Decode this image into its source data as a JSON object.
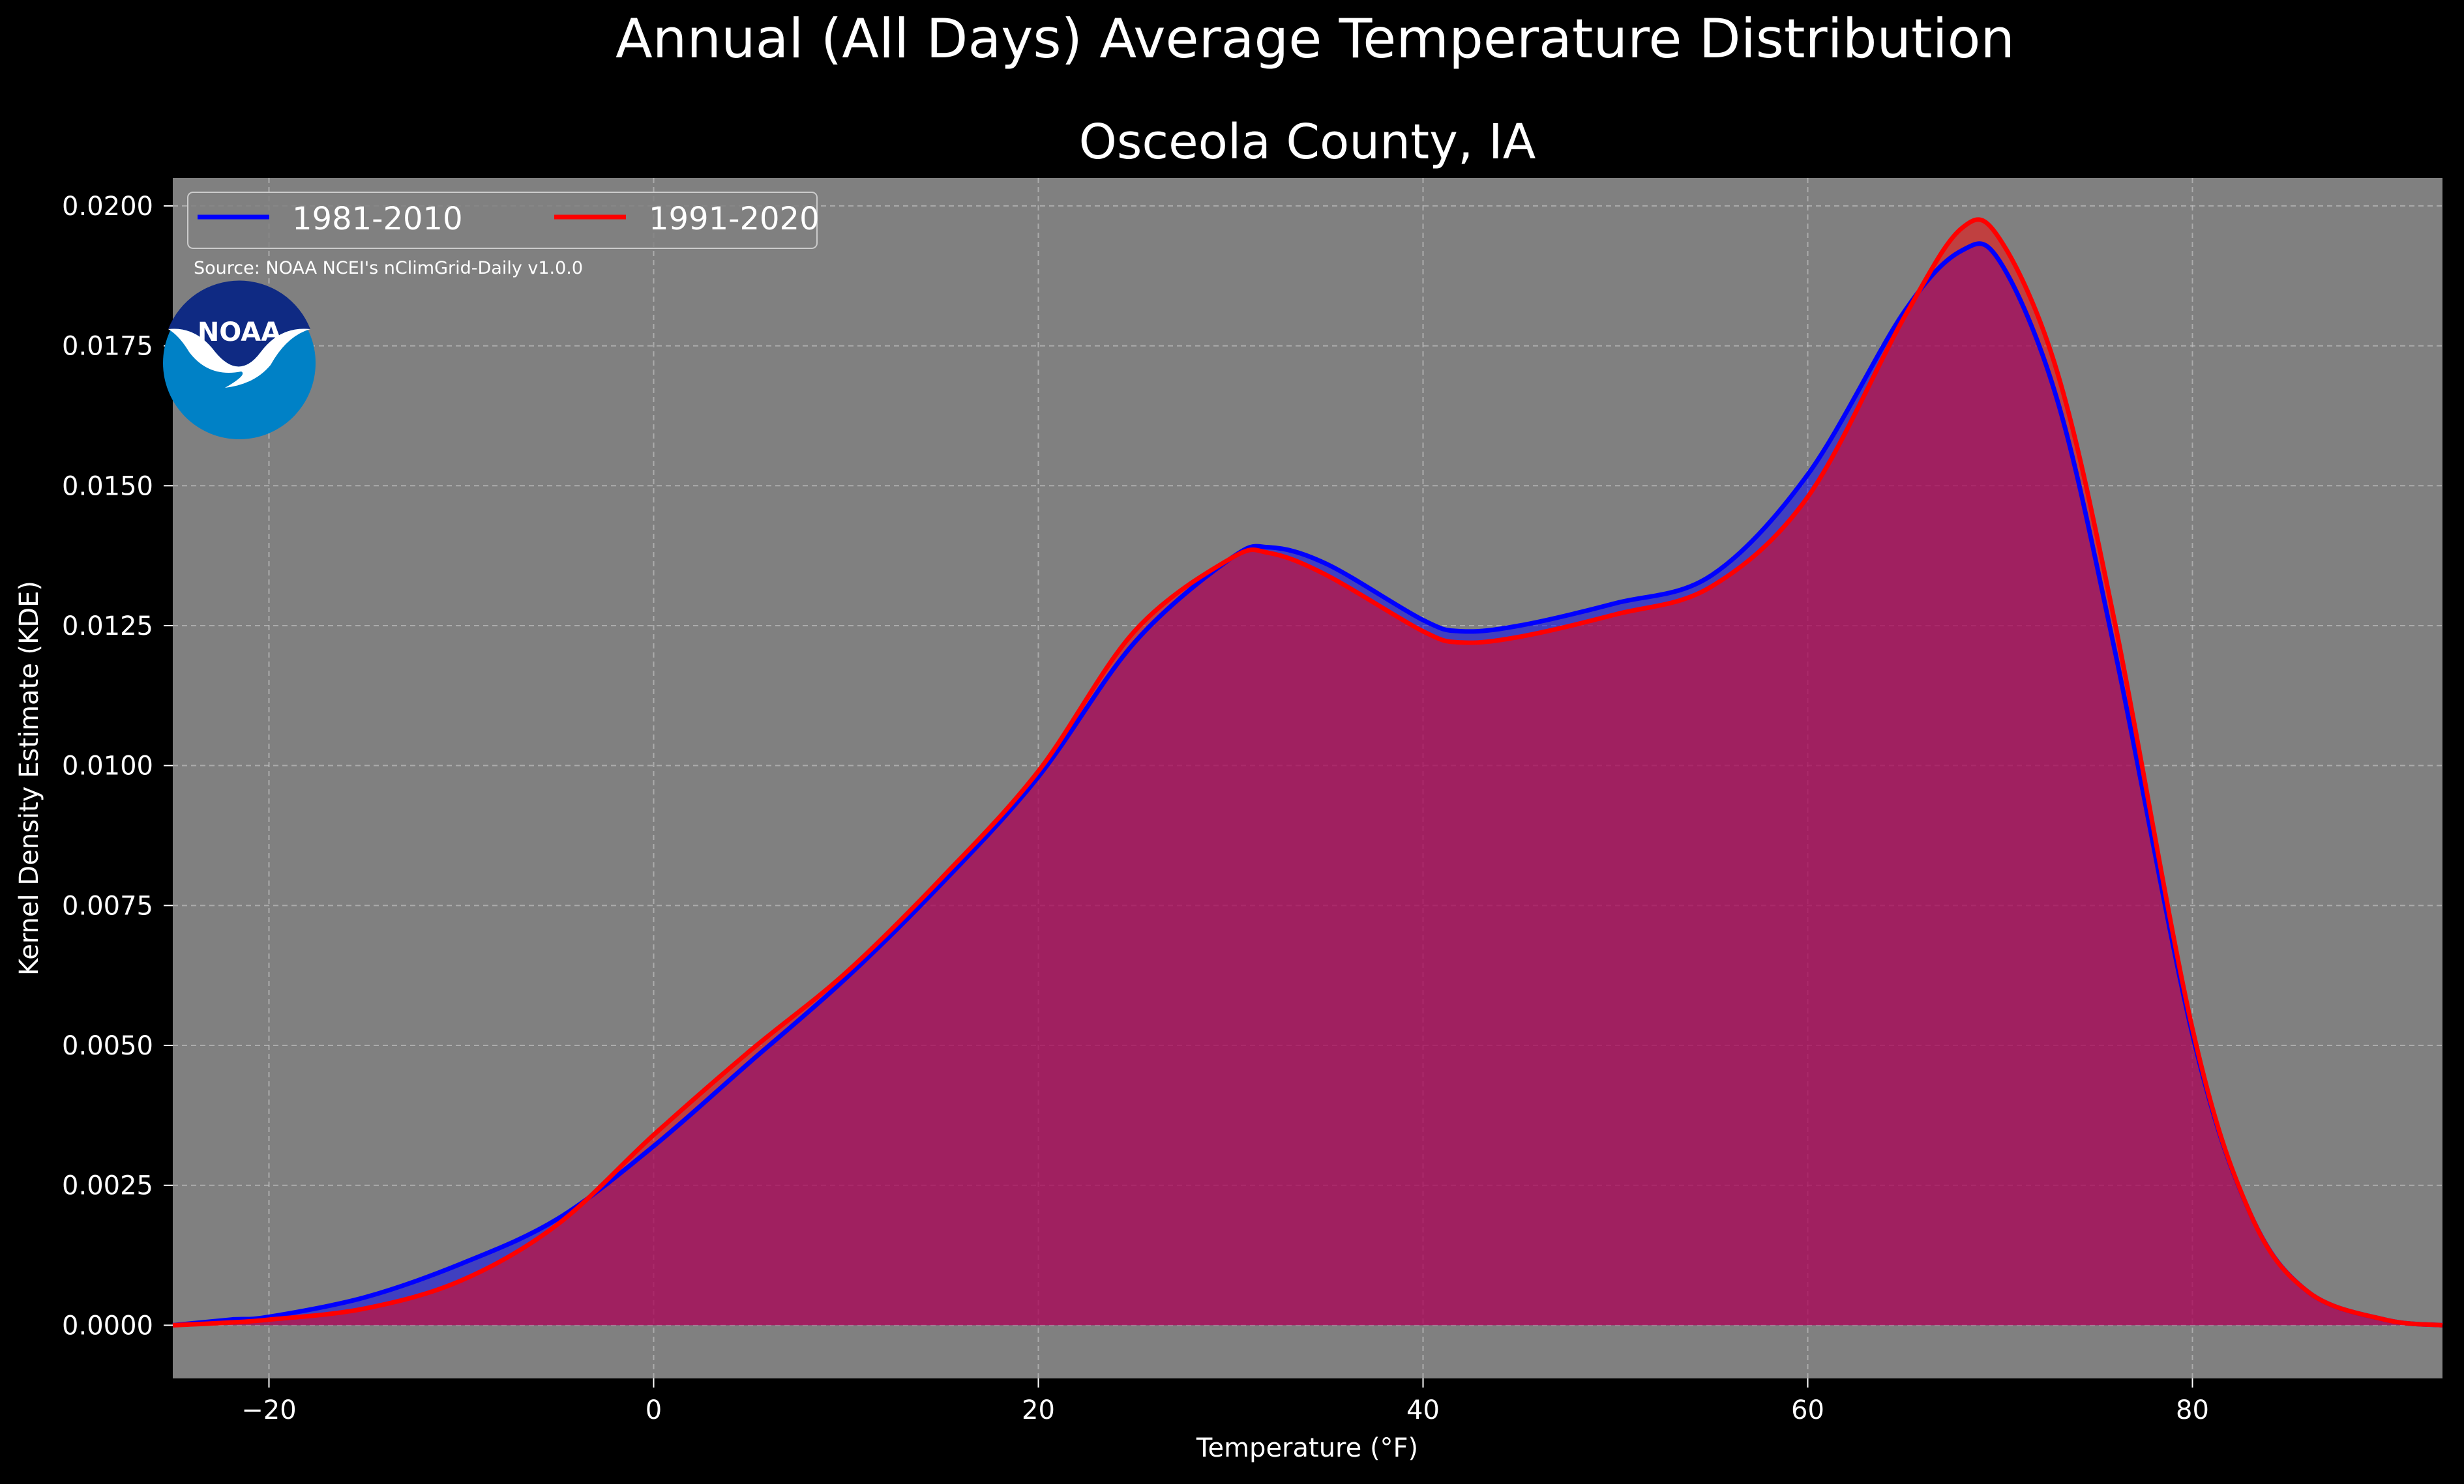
{
  "figure": {
    "suptitle": "Annual (All Days) Average Temperature Distribution",
    "source_note": "Source: NOAA NCEI's nClimGrid-Daily v1.0.0",
    "logo_text": "NOAA"
  },
  "chart_data": {
    "type": "area",
    "title": "Osceola County, IA",
    "xlabel": "Temperature (°F)",
    "ylabel": "Kernel Density Estimate (KDE)",
    "xlim": [
      -25,
      93
    ],
    "ylim": [
      -0.00095,
      0.0205
    ],
    "x_ticks": [
      -20,
      0,
      20,
      40,
      60,
      80
    ],
    "x_tick_labels": [
      "−20",
      "0",
      "20",
      "40",
      "60",
      "80"
    ],
    "y_ticks": [
      0,
      0.0025,
      0.005,
      0.0075,
      0.01,
      0.0125,
      0.015,
      0.0175,
      0.02
    ],
    "y_tick_labels": [
      "0.0000",
      "0.0025",
      "0.0050",
      "0.0075",
      "0.0100",
      "0.0125",
      "0.0150",
      "0.0175",
      "0.0200"
    ],
    "grid": true,
    "legend_position": "top-left",
    "legend_columns": 2,
    "background_color": "#808080",
    "series": [
      {
        "name": "1981-2010",
        "color": "#0000ff",
        "points": [
          [
            -25,
            0.0
          ],
          [
            -22,
            0.0001
          ],
          [
            -20,
            0.00015
          ],
          [
            -15,
            0.0005
          ],
          [
            -10,
            0.0011
          ],
          [
            -5,
            0.0019
          ],
          [
            0,
            0.0032
          ],
          [
            5,
            0.0047
          ],
          [
            10,
            0.0062
          ],
          [
            15,
            0.0079
          ],
          [
            20,
            0.0098
          ],
          [
            25,
            0.0122
          ],
          [
            30,
            0.0137
          ],
          [
            32,
            0.0139
          ],
          [
            35,
            0.0136
          ],
          [
            40,
            0.0126
          ],
          [
            42,
            0.0124
          ],
          [
            45,
            0.0125
          ],
          [
            50,
            0.0129
          ],
          [
            55,
            0.0134
          ],
          [
            60,
            0.0152
          ],
          [
            65,
            0.0181
          ],
          [
            68,
            0.0192
          ],
          [
            70,
            0.019
          ],
          [
            73,
            0.0165
          ],
          [
            76,
            0.012
          ],
          [
            80,
            0.0052
          ],
          [
            83,
            0.002
          ],
          [
            86,
            0.0006
          ],
          [
            90,
            0.0001
          ],
          [
            93,
            0.0
          ]
        ]
      },
      {
        "name": "1991-2020",
        "color": "#ff0000",
        "points": [
          [
            -25,
            0.0
          ],
          [
            -22,
            5e-05
          ],
          [
            -20,
            0.0001
          ],
          [
            -15,
            0.0003
          ],
          [
            -10,
            0.0008
          ],
          [
            -5,
            0.0018
          ],
          [
            0,
            0.0034
          ],
          [
            5,
            0.0049
          ],
          [
            10,
            0.0063
          ],
          [
            15,
            0.008
          ],
          [
            20,
            0.0099
          ],
          [
            25,
            0.0124
          ],
          [
            30,
            0.0137
          ],
          [
            32,
            0.0138
          ],
          [
            35,
            0.0134
          ],
          [
            40,
            0.0124
          ],
          [
            42,
            0.0122
          ],
          [
            45,
            0.0123
          ],
          [
            50,
            0.0127
          ],
          [
            55,
            0.0132
          ],
          [
            60,
            0.0148
          ],
          [
            65,
            0.018
          ],
          [
            68,
            0.0196
          ],
          [
            70,
            0.0194
          ],
          [
            73,
            0.017
          ],
          [
            76,
            0.0125
          ],
          [
            80,
            0.0053
          ],
          [
            83,
            0.002
          ],
          [
            86,
            0.0006
          ],
          [
            90,
            0.0001
          ],
          [
            93,
            0.0
          ]
        ]
      }
    ]
  }
}
